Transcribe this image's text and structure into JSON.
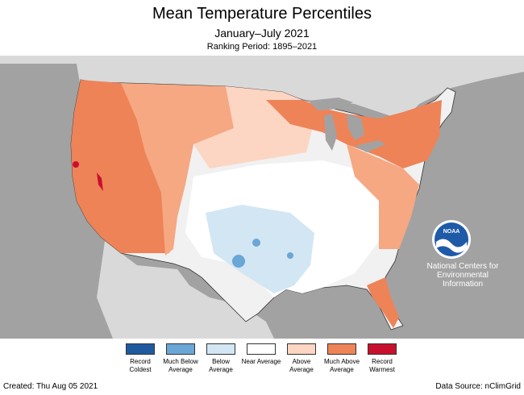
{
  "title": "Mean Temperature Percentiles",
  "subtitle": "January–July 2021",
  "ranking_period": "Ranking Period: 1895–2021",
  "logo_text": "NOAA",
  "center_name": "National Centers for Environmental Information",
  "legend": [
    {
      "label": "Record Coldest",
      "color": "#1f5a9e"
    },
    {
      "label": "Much Below Average",
      "color": "#6aa6d6"
    },
    {
      "label": "Below Average",
      "color": "#d3e6f3"
    },
    {
      "label": "Near Average",
      "color": "#ffffff"
    },
    {
      "label": "Above Average",
      "color": "#fcd5c3"
    },
    {
      "label": "Much Above Average",
      "color": "#ee8358"
    },
    {
      "label": "Record Warmest",
      "color": "#c8102e"
    }
  ],
  "created": "Created: Thu Aug 05 2021",
  "data_source": "Data Source: nClimGrid"
}
